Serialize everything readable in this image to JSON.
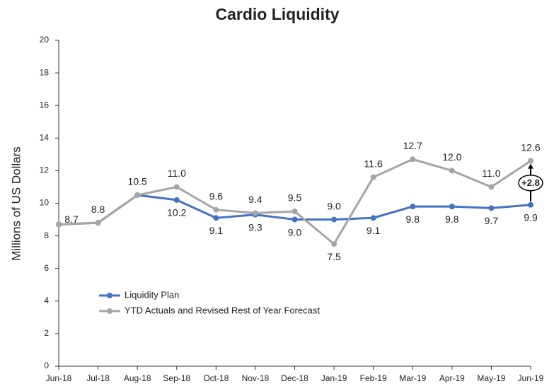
{
  "chart_data": {
    "type": "line",
    "title": "Cardio Liquidity",
    "y_label": "Millions of US Dollars",
    "categories": [
      "Jun-18",
      "Jul-18",
      "Aug-18",
      "Sep-18",
      "Oct-18",
      "Nov-18",
      "Dec-18",
      "Jan-19",
      "Feb-19",
      "Mar-19",
      "Apr-19",
      "May-19",
      "Jun-19"
    ],
    "series": [
      {
        "name": "Liquidity Plan",
        "color": "#4472c4",
        "values": [
          8.7,
          8.8,
          10.5,
          10.2,
          9.1,
          9.3,
          9.0,
          9.0,
          9.1,
          9.8,
          9.8,
          9.7,
          9.9
        ],
        "value_labels": [
          null,
          null,
          null,
          "10.2",
          "9.1",
          "9.3",
          "9.0",
          "9.0",
          "9.1",
          "9.8",
          "9.8",
          "9.7",
          "9.9"
        ]
      },
      {
        "name": "YTD Actuals and Revised Rest of Year Forecast",
        "color": "#a5a5a5",
        "values": [
          8.7,
          8.8,
          10.5,
          11.0,
          9.6,
          9.4,
          9.5,
          7.5,
          11.6,
          12.7,
          12.0,
          11.0,
          12.6
        ],
        "value_labels": [
          "8.7",
          "8.8",
          "10.5",
          "11.0",
          "9.6",
          "9.4",
          "9.5",
          "7.5",
          "11.6",
          "12.7",
          "12.0",
          "11.0",
          "12.6"
        ]
      }
    ],
    "annotation": "+2.8",
    "ylim": [
      0,
      20
    ],
    "yticks": [
      0,
      2,
      4,
      6,
      8,
      10,
      12,
      14,
      16,
      18,
      20
    ],
    "grid": false,
    "legend": "lower left"
  }
}
